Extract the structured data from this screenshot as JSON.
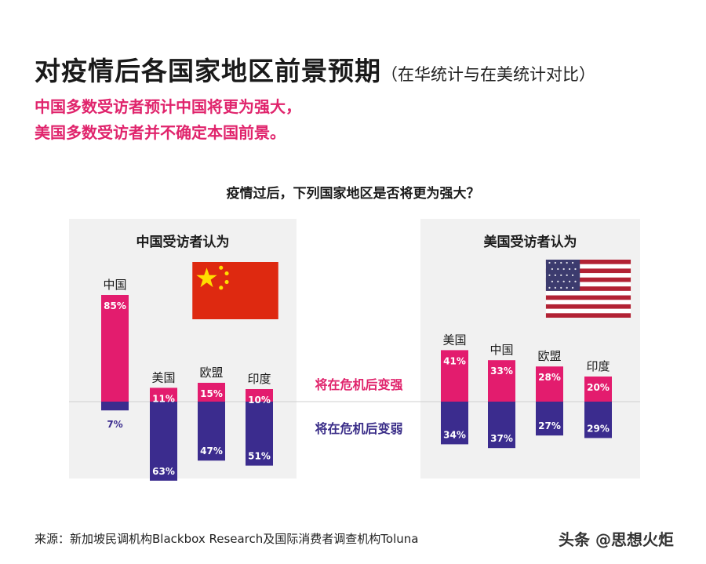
{
  "title": {
    "main": "对疫情后各国家地区前景预期",
    "sub": "（在华统计与在美统计对比）"
  },
  "subtitle": {
    "line1": "中国多数受访者预计中国将更为强大，",
    "line2": "美国多数受访者并不确定本国前景。"
  },
  "question": "疫情过后，下列国家地区是否将更为强大？",
  "legend": {
    "stronger": "将在危机后变强",
    "weaker": "将在危机后变弱"
  },
  "colors": {
    "stronger": "#e31c6e",
    "weaker": "#3b2c8e",
    "panel": "#f1f1f1"
  },
  "chart_data": [
    {
      "type": "bar",
      "title": "中国受访者认为",
      "categories": [
        "中国",
        "美国",
        "欧盟",
        "印度"
      ],
      "series": [
        {
          "name": "将在危机后变强",
          "values": [
            85,
            11,
            15,
            10
          ]
        },
        {
          "name": "将在危机后变弱",
          "values": [
            7,
            63,
            47,
            51
          ]
        }
      ],
      "unit": "%"
    },
    {
      "type": "bar",
      "title": "美国受访者认为",
      "categories": [
        "美国",
        "中国",
        "欧盟",
        "印度"
      ],
      "series": [
        {
          "name": "将在危机后变强",
          "values": [
            41,
            33,
            28,
            20
          ]
        },
        {
          "name": "将在危机后变弱",
          "values": [
            34,
            37,
            27,
            29
          ]
        }
      ],
      "unit": "%"
    }
  ],
  "source": "来源：新加坡民调机构Blackbox Research及国际消费者调查机构Toluna",
  "watermark": "头条 @思想火炬"
}
